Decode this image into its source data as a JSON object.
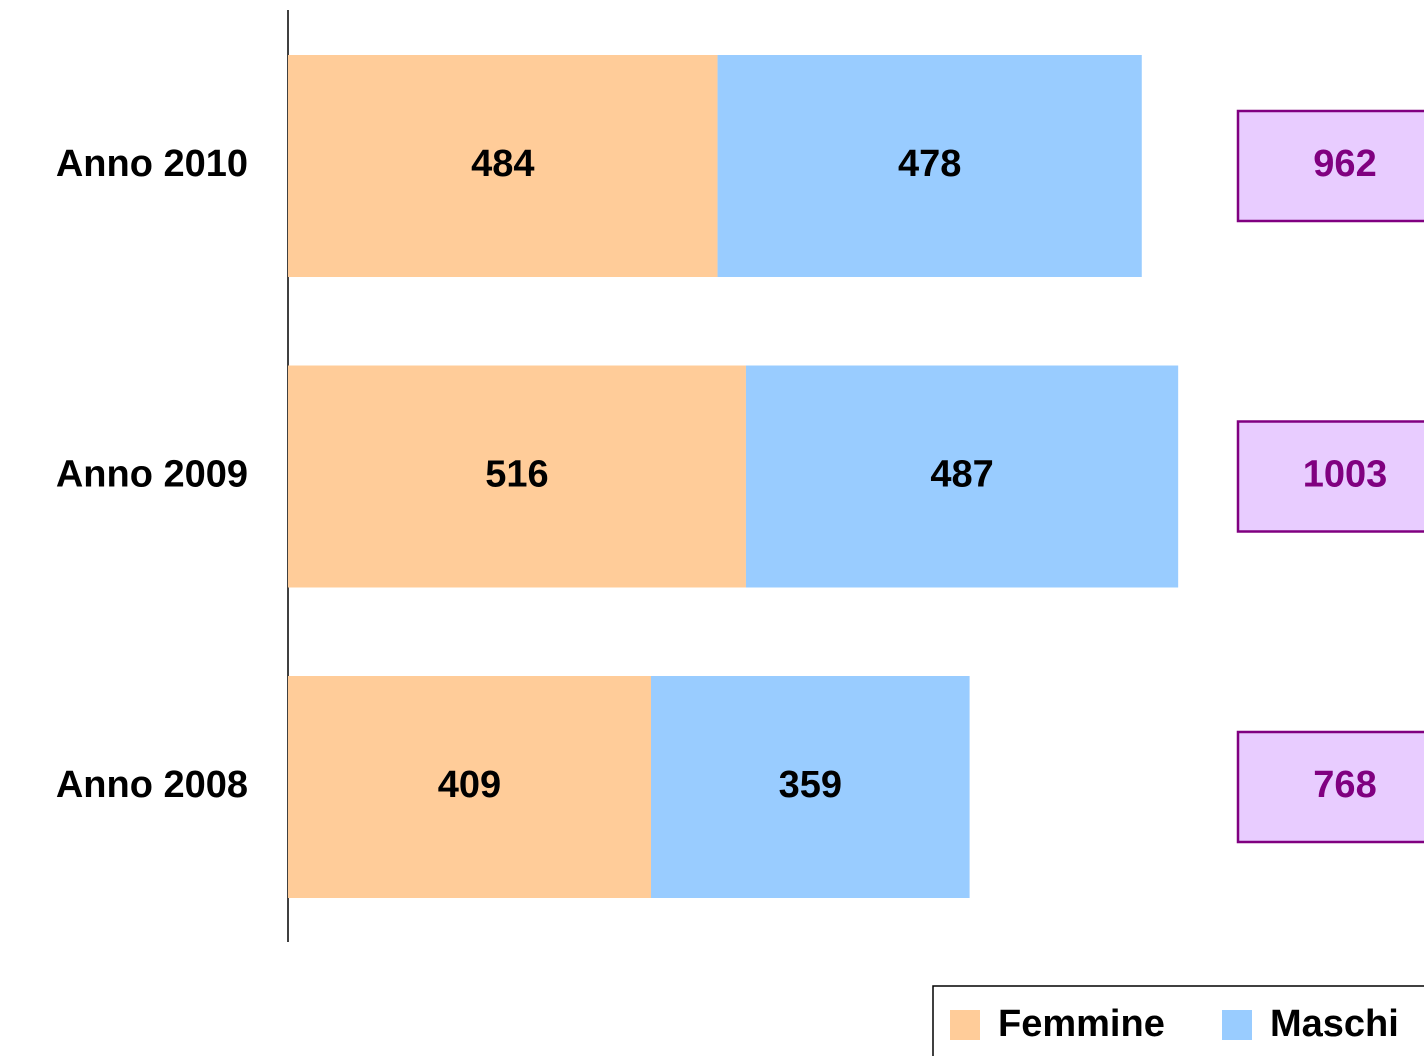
{
  "chart_data": {
    "type": "stacked_bar_horizontal",
    "categories": [
      "Anno 2010",
      "Anno 2009",
      "Anno 2008"
    ],
    "series": [
      {
        "name": "Femmine",
        "color": "#ffcc99",
        "values": [
          484,
          516,
          409
        ]
      },
      {
        "name": "Maschi",
        "color": "#99ccff",
        "values": [
          478,
          487,
          359
        ]
      }
    ],
    "totals": [
      962,
      1003,
      768
    ],
    "totals_color": "#800080",
    "totals_fill": "#e8ccff"
  }
}
